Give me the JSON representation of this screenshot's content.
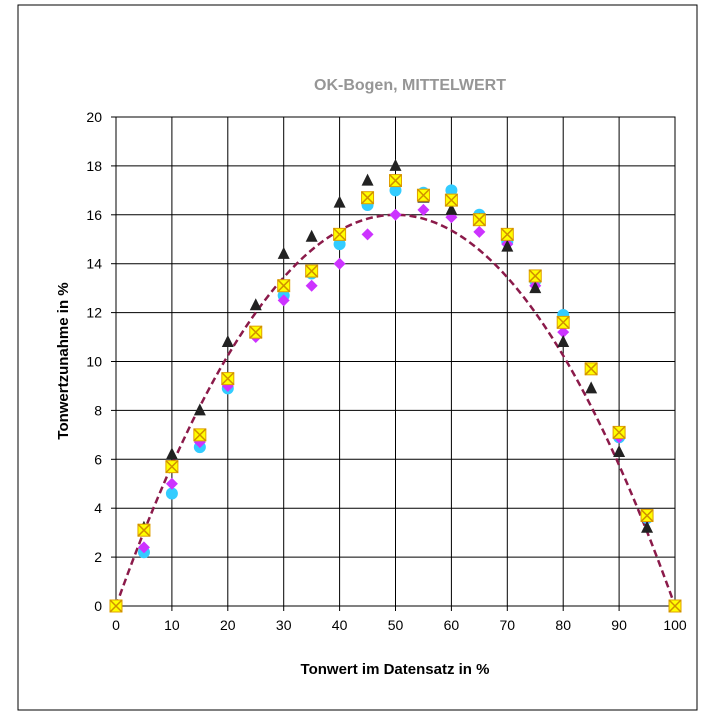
{
  "chart_data": {
    "type": "scatter",
    "title": "OK-Bogen, MITTELWERT",
    "xlabel": "Tonwert im Datensatz in %",
    "ylabel": "Tonwertzunahme in %",
    "xlim": [
      0,
      100
    ],
    "ylim": [
      0,
      20
    ],
    "xticks": [
      "0",
      "10",
      "20",
      "30",
      "40",
      "50",
      "60",
      "70",
      "80",
      "90",
      "100"
    ],
    "yticks": [
      "0",
      "2",
      "4",
      "6",
      "8",
      "10",
      "12",
      "14",
      "16",
      "18",
      "20"
    ],
    "grid": true,
    "legend": "none",
    "series": [
      {
        "marker": "circle",
        "color": "#33ccff",
        "x": [
          0,
          5,
          10,
          15,
          20,
          25,
          30,
          35,
          40,
          45,
          50,
          55,
          60,
          65,
          70,
          75,
          80,
          85,
          90,
          95,
          100
        ],
        "y": [
          0,
          2.2,
          4.6,
          6.5,
          8.9,
          11.2,
          12.7,
          13.6,
          14.8,
          16.4,
          17.0,
          16.9,
          17.0,
          16.0,
          14.9,
          13.3,
          11.9,
          9.7,
          6.9,
          3.6,
          0
        ]
      },
      {
        "marker": "diamond",
        "color": "#cc33ff",
        "x": [
          0,
          5,
          10,
          15,
          20,
          25,
          30,
          35,
          40,
          45,
          50,
          55,
          60,
          65,
          70,
          75,
          80,
          85,
          90,
          95,
          100
        ],
        "y": [
          0,
          2.4,
          5.0,
          6.7,
          9.0,
          11.0,
          12.5,
          13.1,
          14.0,
          15.2,
          16.0,
          16.2,
          15.9,
          15.3,
          14.8,
          13.1,
          11.2,
          9.7,
          6.9,
          3.6,
          0
        ]
      },
      {
        "marker": "triangle",
        "color": "#222222",
        "x": [
          0,
          5,
          10,
          15,
          20,
          25,
          30,
          35,
          40,
          45,
          50,
          55,
          60,
          65,
          70,
          75,
          80,
          85,
          90,
          95,
          100
        ],
        "y": [
          0,
          3.2,
          6.2,
          8.0,
          10.8,
          12.3,
          14.4,
          15.1,
          16.5,
          17.4,
          18.0,
          16.7,
          16.2,
          15.8,
          14.7,
          13.0,
          10.8,
          8.9,
          6.3,
          3.2,
          0
        ]
      },
      {
        "marker": "square-x",
        "color": "#ffff00",
        "x": [
          0,
          5,
          10,
          15,
          20,
          25,
          30,
          35,
          40,
          45,
          50,
          55,
          60,
          65,
          70,
          75,
          80,
          85,
          90,
          95,
          100
        ],
        "y": [
          0,
          3.1,
          5.7,
          7.0,
          9.3,
          11.2,
          13.1,
          13.7,
          15.2,
          16.7,
          17.4,
          16.8,
          16.6,
          15.8,
          15.2,
          13.5,
          11.6,
          9.7,
          7.1,
          3.7,
          0
        ]
      }
    ],
    "trendline": {
      "style": "dashed",
      "color": "#8b1a4a",
      "shape": "parabola",
      "peak": [
        50,
        16
      ]
    }
  }
}
